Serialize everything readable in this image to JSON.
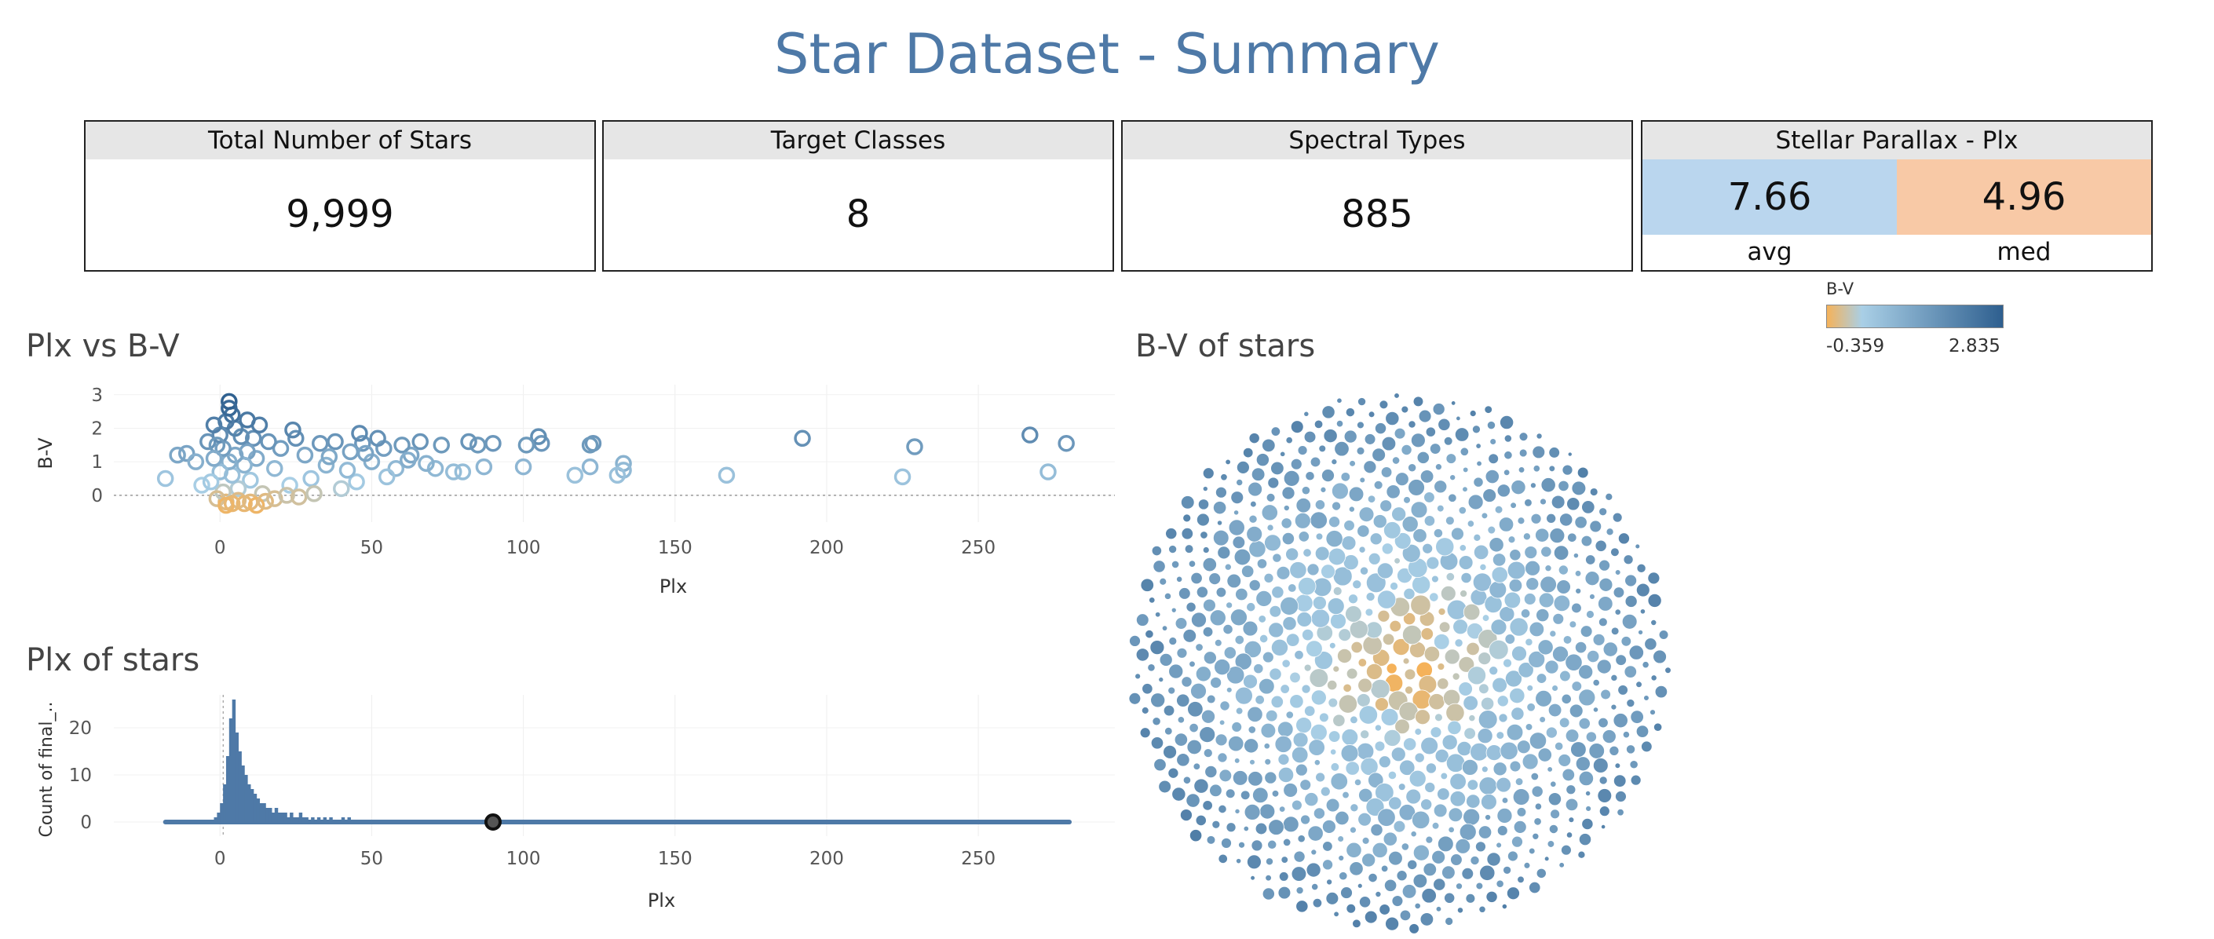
{
  "title": "Star Dataset - Summary",
  "kpis": [
    {
      "label": "Total Number of Stars",
      "value": "9,999"
    },
    {
      "label": "Target Classes",
      "value": "8"
    },
    {
      "label": "Spectral Types",
      "value": "885"
    }
  ],
  "parallax_card": {
    "label": "Stellar Parallax - Plx",
    "avg_value": "7.66",
    "med_value": "4.96",
    "avg_label": "avg",
    "med_label": "med",
    "avg_color": "#bad6ee",
    "med_color": "#f8c9a6"
  },
  "legend": {
    "title": "B-V",
    "min_label": "-0.359",
    "max_label": "2.835",
    "colors": [
      "#f5b25a",
      "#a9cfe6",
      "#2e5f8f"
    ]
  },
  "colors": {
    "title": "#4e79a7",
    "primary": "#4e79a7"
  },
  "chart_data": [
    {
      "type": "scatter",
      "title": "Plx vs B-V",
      "xlabel": "Plx",
      "ylabel": "B-V",
      "xlim": [
        -35,
        295
      ],
      "ylim": [
        -0.8,
        3.3
      ],
      "xticks": [
        "0",
        "50",
        "100",
        "150",
        "200",
        "250"
      ],
      "yticks": [
        "0",
        "1",
        "2",
        "3"
      ],
      "grid": true,
      "reference_line_y": 0,
      "points": [
        [
          -18,
          0.5
        ],
        [
          -14,
          1.2
        ],
        [
          -11,
          1.25
        ],
        [
          -8,
          1.0
        ],
        [
          -6,
          0.3
        ],
        [
          -4,
          1.6
        ],
        [
          192,
          1.7
        ],
        [
          229,
          1.45
        ],
        [
          267,
          1.8
        ],
        [
          279,
          1.55
        ],
        [
          273,
          0.7
        ],
        [
          225,
          0.55
        ],
        [
          167,
          0.6
        ],
        [
          133,
          0.95
        ],
        [
          133,
          0.75
        ],
        [
          131,
          0.6
        ],
        [
          123,
          1.55
        ],
        [
          122,
          1.5
        ],
        [
          122,
          0.85
        ],
        [
          117,
          0.6
        ],
        [
          106,
          1.55
        ],
        [
          105,
          1.75
        ],
        [
          101,
          1.5
        ],
        [
          100,
          0.85
        ],
        [
          90,
          1.55
        ],
        [
          87,
          0.85
        ],
        [
          85,
          1.5
        ],
        [
          82,
          1.6
        ],
        [
          80,
          0.7
        ],
        [
          77,
          0.7
        ],
        [
          73,
          1.5
        ],
        [
          71,
          0.8
        ],
        [
          66,
          1.6
        ],
        [
          63,
          1.2
        ],
        [
          60,
          1.5
        ],
        [
          58,
          0.8
        ],
        [
          54,
          1.4
        ],
        [
          52,
          1.7
        ],
        [
          50,
          1.0
        ],
        [
          47,
          1.55
        ],
        [
          45,
          0.4
        ],
        [
          43,
          1.3
        ],
        [
          40,
          0.2
        ],
        [
          38,
          1.6
        ],
        [
          35,
          0.9
        ],
        [
          33,
          1.55
        ],
        [
          30,
          0.5
        ],
        [
          28,
          1.2
        ],
        [
          25,
          1.7
        ],
        [
          23,
          0.3
        ],
        [
          20,
          1.4
        ],
        [
          18,
          0.8
        ],
        [
          16,
          1.6
        ],
        [
          14,
          0.05
        ],
        [
          12,
          1.1
        ],
        [
          11,
          1.7
        ],
        [
          10,
          0.45
        ],
        [
          9,
          1.3
        ],
        [
          8,
          0.9
        ],
        [
          7,
          1.75
        ],
        [
          6,
          0.2
        ],
        [
          5,
          1.2
        ],
        [
          5,
          2.0
        ],
        [
          4,
          2.4
        ],
        [
          4,
          0.6
        ],
        [
          3,
          2.8
        ],
        [
          3,
          1.0
        ],
        [
          2,
          2.2
        ],
        [
          2,
          -0.2
        ],
        [
          1,
          1.4
        ],
        [
          1,
          0.1
        ],
        [
          0,
          1.8
        ],
        [
          0,
          0.7
        ],
        [
          -1,
          1.5
        ],
        [
          -1,
          -0.1
        ],
        [
          -2,
          1.1
        ],
        [
          -2,
          2.1
        ],
        [
          -3,
          0.4
        ],
        [
          6,
          -0.15
        ],
        [
          8,
          -0.25
        ],
        [
          10,
          -0.2
        ],
        [
          12,
          -0.3
        ],
        [
          4,
          -0.25
        ],
        [
          15,
          -0.18
        ],
        [
          2,
          -0.3
        ],
        [
          18,
          -0.1
        ],
        [
          22,
          0.0
        ],
        [
          26,
          -0.05
        ],
        [
          31,
          0.05
        ],
        [
          36,
          1.15
        ],
        [
          42,
          0.75
        ],
        [
          48,
          1.25
        ],
        [
          55,
          0.55
        ],
        [
          62,
          1.05
        ],
        [
          68,
          0.95
        ],
        [
          46,
          1.85
        ],
        [
          24,
          1.95
        ],
        [
          13,
          2.1
        ],
        [
          9,
          2.25
        ],
        [
          3,
          2.6
        ]
      ]
    },
    {
      "type": "histogram",
      "title": "Plx of stars",
      "xlabel": "Plx",
      "ylabel": "Count of final_..",
      "xlim": [
        -35,
        295
      ],
      "ylim": [
        -3,
        27
      ],
      "xticks": [
        "0",
        "50",
        "100",
        "150",
        "200",
        "250"
      ],
      "yticks": [
        "0",
        "10",
        "20"
      ],
      "grid": true,
      "baseline_range": [
        -18,
        280
      ],
      "highlight_point": [
        90,
        0
      ],
      "bins_x": [
        -2,
        -1,
        0,
        1,
        2,
        3,
        4,
        5,
        6,
        7,
        8,
        9,
        10,
        11,
        12,
        13,
        14,
        15,
        16,
        17,
        18,
        19,
        20,
        21,
        22,
        23,
        24,
        25,
        26,
        27,
        28,
        30,
        32,
        34,
        36,
        38,
        40,
        42
      ],
      "bins_count": [
        1,
        2,
        4,
        8,
        14,
        22,
        26,
        19,
        15,
        12,
        10,
        8,
        7,
        6,
        5,
        4,
        4,
        3,
        3,
        2,
        3,
        2,
        2,
        2,
        1,
        2,
        1,
        1,
        2,
        1,
        1,
        1,
        1,
        1,
        1,
        0,
        1,
        1
      ]
    },
    {
      "type": "packed-bubble",
      "title": "B-V of stars",
      "color_by": "B-V"
    }
  ]
}
